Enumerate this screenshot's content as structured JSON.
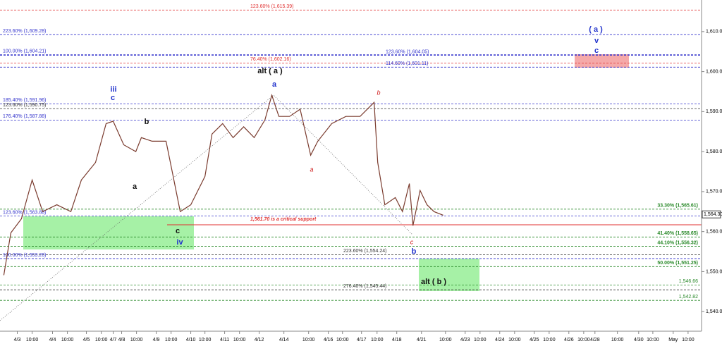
{
  "chart_data": {
    "type": "line",
    "x": [
      -0.78,
      -0.37,
      0.24,
      0.86,
      1.47,
      2.29,
      3.1,
      3.71,
      4.53,
      5.14,
      5.55,
      6.16,
      6.86,
      7.18,
      7.8,
      8.61,
      9.02,
      9.43,
      10.04,
      10.86,
      11.27,
      11.88,
      12.49,
      13.1,
      13.71,
      14.33,
      14.73,
      15.14,
      15.76,
      16.37,
      16.98,
      17.39,
      18.2,
      19.02,
      19.84,
      20.65,
      20.86,
      21.27,
      21.88,
      22.29,
      22.69,
      22.9,
      23.31,
      23.71,
      24.12,
      24.65
    ],
    "series": [
      {
        "color": "#7a3b2e",
        "values": [
          1549.1,
          1559.7,
          1563.2,
          1572.9,
          1565.0,
          1566.7,
          1565.0,
          1572.9,
          1577.3,
          1587.0,
          1587.6,
          1581.7,
          1580.0,
          1583.5,
          1582.6,
          1582.6,
          1573.8,
          1565.0,
          1566.7,
          1573.8,
          1584.4,
          1587.0,
          1583.5,
          1586.2,
          1583.5,
          1587.9,
          1594.1,
          1588.8,
          1588.8,
          1590.6,
          1579.1,
          1582.6,
          1587.0,
          1588.8,
          1588.8,
          1592.3,
          1577.3,
          1566.7,
          1568.5,
          1565.0,
          1572.0,
          1561.5,
          1570.3,
          1566.7,
          1565.0,
          1564.1
        ]
      }
    ],
    "xlim": [
      -1,
      39.6
    ],
    "xticks": [
      {
        "value": 0,
        "label": "4/3"
      },
      {
        "value": 0.86,
        "label": "10:00"
      },
      {
        "value": 2.04,
        "label": "4/4"
      },
      {
        "value": 2.9,
        "label": "10:00"
      },
      {
        "value": 4,
        "label": "4/5"
      },
      {
        "value": 4.86,
        "label": "10:00"
      },
      {
        "value": 5.55,
        "label": "4/7"
      },
      {
        "value": 6.04,
        "label": "4/8"
      },
      {
        "value": 6.9,
        "label": "10:00"
      },
      {
        "value": 8.04,
        "label": "4/9"
      },
      {
        "value": 8.9,
        "label": "10:00"
      },
      {
        "value": 10.04,
        "label": "4/10"
      },
      {
        "value": 10.86,
        "label": "10:00"
      },
      {
        "value": 12,
        "label": "4/11"
      },
      {
        "value": 12.86,
        "label": "10:00"
      },
      {
        "value": 14,
        "label": "4/12"
      },
      {
        "value": 15.43,
        "label": "4/14"
      },
      {
        "value": 16.86,
        "label": "10:00"
      },
      {
        "value": 18,
        "label": "4/16"
      },
      {
        "value": 18.82,
        "label": "10:00"
      },
      {
        "value": 19.92,
        "label": "4/17"
      },
      {
        "value": 20.82,
        "label": "10:00"
      },
      {
        "value": 21.96,
        "label": "4/18"
      },
      {
        "value": 23.39,
        "label": "4/21"
      },
      {
        "value": 24.78,
        "label": "10:00"
      },
      {
        "value": 25.92,
        "label": "4/23"
      },
      {
        "value": 26.78,
        "label": "10:00"
      },
      {
        "value": 27.92,
        "label": "4/24"
      },
      {
        "value": 28.78,
        "label": "10:00"
      },
      {
        "value": 29.92,
        "label": "4/25"
      },
      {
        "value": 30.78,
        "label": "10:00"
      },
      {
        "value": 31.92,
        "label": "4/26"
      },
      {
        "value": 32.78,
        "label": "10:00"
      },
      {
        "value": 33.43,
        "label": "4/28"
      },
      {
        "value": 34.73,
        "label": "10:00"
      },
      {
        "value": 35.96,
        "label": "4/30"
      },
      {
        "value": 36.78,
        "label": "10:00"
      },
      {
        "value": 37.96,
        "label": "May"
      },
      {
        "value": 38.82,
        "label": "10:00"
      }
    ],
    "ylim": [
      1535.1,
      1617.9
    ],
    "yticks": [
      {
        "value": 1540,
        "label": "1,540.00"
      },
      {
        "value": 1550,
        "label": "1,550.00"
      },
      {
        "value": 1560,
        "label": "1,560.00"
      },
      {
        "value": 1570,
        "label": "1,570.00"
      },
      {
        "value": 1580,
        "label": "1,580.00"
      },
      {
        "value": 1590,
        "label": "1,590.00"
      },
      {
        "value": 1600,
        "label": "1,600.00"
      },
      {
        "value": 1610,
        "label": "1,610.00"
      }
    ],
    "levels": [
      {
        "value": 1615.39,
        "label": "123.60% (1,615.39)",
        "color": "#e03030",
        "style": "dashed"
      },
      {
        "value": 1609.28,
        "label": "223.60% (1,609.28)",
        "color": "#3333cc",
        "style": "dashed"
      },
      {
        "value": 1604.21,
        "label": "100.00% (1,604.21)",
        "color": "#3333cc",
        "style": "dashed"
      },
      {
        "value": 1604.05,
        "label": "123.60% (1,604.05)",
        "color": "#3333cc",
        "style": "dashed"
      },
      {
        "value": 1602.16,
        "label": "76.40% (1,602.16)",
        "color": "#e03030",
        "style": "dashed"
      },
      {
        "value": 1601.11,
        "label": "114.60% (1,601.11)",
        "color": "#3333cc",
        "style": "dashed"
      },
      {
        "value": 1591.96,
        "label": "185.40% (1,591.96)",
        "color": "#3333cc",
        "style": "dashed"
      },
      {
        "value": 1590.75,
        "label": "123.60% (1,590.75)",
        "color": "#333333",
        "style": "dashed"
      },
      {
        "value": 1587.88,
        "label": "176.40% (1,587.88)",
        "color": "#3333cc",
        "style": "dashed"
      },
      {
        "value": 1565.61,
        "label": "33.30% (1,565.61)",
        "color": "#2a8a2a",
        "style": "dashed"
      },
      {
        "value": 1563.88,
        "label": "123.60% (1,563.88)",
        "color": "#3333cc",
        "style": "dashed"
      },
      {
        "value": 1561.7,
        "label": "1,561.70 is a critical support",
        "color": "#e03030",
        "style": "solid"
      },
      {
        "value": 1558.65,
        "label": "41.40% (1,558.65)",
        "color": "#2a8a2a",
        "style": "dashed"
      },
      {
        "value": 1556.32,
        "label": "44.10% (1,556.32)",
        "color": "#2a8a2a",
        "style": "dashed"
      },
      {
        "value": 1554.24,
        "label": "223.60% (1,554.24)",
        "color": "#333333",
        "style": "dashed"
      },
      {
        "value": 1553.26,
        "label": "100.00% (1,553.26)",
        "color": "#3333cc",
        "style": "dashed"
      },
      {
        "value": 1551.25,
        "label": "50.00% (1,551.25)",
        "color": "#2a8a2a",
        "style": "dashed"
      },
      {
        "value": 1546.66,
        "label": "1,546.66",
        "color": "#2a8a2a",
        "style": "dashed"
      },
      {
        "value": 1545.44,
        "label": "276.40% (1,545.44)",
        "color": "#333333",
        "style": "dashed"
      },
      {
        "value": 1542.82,
        "label": "1,542.82",
        "color": "#2a8a2a",
        "style": "dashed"
      }
    ],
    "last_price": {
      "value": 1564.3,
      "label": "1,564.30"
    },
    "annotations": [
      "( a )",
      "v",
      "c",
      "alt ( a )",
      "a",
      "iii",
      "c",
      "b",
      "a",
      "c",
      "iv",
      "b",
      "a",
      "c",
      "b",
      "alt ( b )"
    ]
  }
}
